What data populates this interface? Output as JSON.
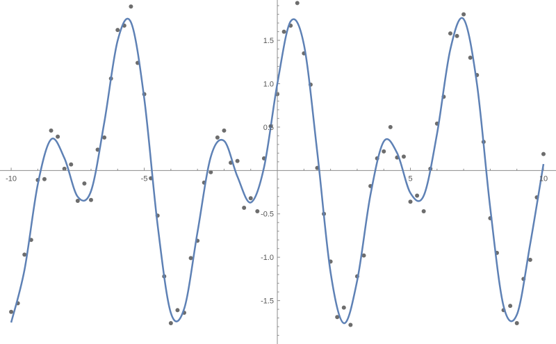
{
  "chart_data": {
    "type": "scatter",
    "title": "",
    "xlabel": "",
    "ylabel": "",
    "xlim": [
      -10.42,
      10.47
    ],
    "ylim": [
      -2.0,
      1.965
    ],
    "grid": false,
    "x_ticks": [
      {
        "value": -10,
        "label": "-10"
      },
      {
        "value": -5,
        "label": "-5"
      },
      {
        "value": 5,
        "label": "5"
      },
      {
        "value": 10,
        "label": "10"
      }
    ],
    "y_ticks": [
      {
        "value": 1.5,
        "label": "1.5"
      },
      {
        "value": 1.0,
        "label": "1.0"
      },
      {
        "value": 0.5,
        "label": "0.5"
      },
      {
        "value": -0.5,
        "label": "-0.5"
      },
      {
        "value": -1.0,
        "label": "-1.0"
      },
      {
        "value": -1.5,
        "label": "-1.5"
      }
    ],
    "colors": {
      "points": "#6d6d6d",
      "fit_curve": "#5e81b5",
      "axes": "#8c8c8c"
    },
    "series": [
      {
        "kind": "scatter",
        "points": [
          [
            -10,
            -1.63
          ],
          [
            -9.75,
            -1.53
          ],
          [
            -9.5,
            -0.97
          ],
          [
            -9.25,
            -0.8
          ],
          [
            -9,
            -0.11
          ],
          [
            -8.75,
            -0.1
          ],
          [
            -8.5,
            0.46
          ],
          [
            -8.25,
            0.39
          ],
          [
            -8,
            0.02
          ],
          [
            -7.75,
            0.07
          ],
          [
            -7.5,
            -0.35
          ],
          [
            -7.25,
            -0.15
          ],
          [
            -7,
            -0.34
          ],
          [
            -6.75,
            0.24
          ],
          [
            -6.5,
            0.38
          ],
          [
            -6.25,
            1.06
          ],
          [
            -6,
            1.62
          ],
          [
            -5.75,
            1.67
          ],
          [
            -5.5,
            1.89
          ],
          [
            -5.25,
            1.24
          ],
          [
            -5,
            0.88
          ],
          [
            -4.75,
            -0.09
          ],
          [
            -4.5,
            -0.52
          ],
          [
            -4.25,
            -1.22
          ],
          [
            -4,
            -1.76
          ],
          [
            -3.75,
            -1.61
          ],
          [
            -3.5,
            -1.64
          ],
          [
            -3.25,
            -1.01
          ],
          [
            -3,
            -0.81
          ],
          [
            -2.75,
            -0.14
          ],
          [
            -2.5,
            -0.02
          ],
          [
            -2.25,
            0.38
          ],
          [
            -2,
            0.46
          ],
          [
            -1.75,
            0.09
          ],
          [
            -1.5,
            0.11
          ],
          [
            -1.25,
            -0.43
          ],
          [
            -1,
            -0.32
          ],
          [
            -0.75,
            -0.47
          ],
          [
            -0.5,
            0.14
          ],
          [
            -0.25,
            0.51
          ],
          [
            0,
            0.88
          ],
          [
            0.25,
            1.6
          ],
          [
            0.5,
            1.67
          ],
          [
            0.75,
            1.93
          ],
          [
            1,
            1.35
          ],
          [
            1.25,
            0.99
          ],
          [
            1.5,
            0.03
          ],
          [
            1.75,
            -0.5
          ],
          [
            2,
            -1.05
          ],
          [
            2.25,
            -1.69
          ],
          [
            2.5,
            -1.58
          ],
          [
            2.75,
            -1.78
          ],
          [
            3,
            -1.22
          ],
          [
            3.25,
            -0.98
          ],
          [
            3.5,
            -0.18
          ],
          [
            3.75,
            0.14
          ],
          [
            4,
            0.22
          ],
          [
            4.25,
            0.5
          ],
          [
            4.5,
            0.15
          ],
          [
            4.75,
            0.16
          ],
          [
            5,
            -0.36
          ],
          [
            5.25,
            -0.29
          ],
          [
            5.5,
            -0.47
          ],
          [
            5.75,
            0.02
          ],
          [
            6,
            0.54
          ],
          [
            6.25,
            0.85
          ],
          [
            6.5,
            1.58
          ],
          [
            6.75,
            1.55
          ],
          [
            7,
            1.8
          ],
          [
            7.25,
            1.3
          ],
          [
            7.5,
            1.1
          ],
          [
            7.75,
            0.33
          ],
          [
            8,
            -0.55
          ],
          [
            8.25,
            -0.95
          ],
          [
            8.5,
            -1.61
          ],
          [
            8.75,
            -1.56
          ],
          [
            9,
            -1.76
          ],
          [
            9.25,
            -1.25
          ],
          [
            9.5,
            -1.03
          ],
          [
            9.75,
            -0.31
          ],
          [
            10,
            0.19
          ]
        ]
      },
      {
        "kind": "line",
        "x": [
          -10,
          -9.5,
          -9,
          -8.5,
          -8,
          -7.5,
          -7,
          -6.5,
          -6,
          -5.5,
          -5,
          -4.5,
          -4,
          -3.5,
          -3,
          -2.5,
          -2,
          -1.5,
          -1,
          -0.5,
          0,
          0.5,
          1,
          1.5,
          2,
          2.5,
          3,
          3.5,
          4,
          4.5,
          5,
          5.5,
          6,
          6.5,
          7,
          7.5,
          8,
          8.5,
          9,
          9.5,
          10
        ],
        "y": [
          -1.752,
          -1.146,
          -0.16,
          0.359,
          0.142,
          -0.303,
          -0.237,
          0.557,
          1.497,
          1.709,
          0.828,
          -0.623,
          -1.643,
          -1.593,
          -0.711,
          0.158,
          0.341,
          -0.07,
          -0.369,
          0.036,
          1.0,
          1.719,
          1.449,
          0.212,
          -1.173,
          -1.76,
          -1.269,
          -0.279,
          0.335,
          0.201,
          -0.26,
          -0.291,
          0.423,
          1.397,
          1.745,
          0.997,
          -0.434,
          -1.563,
          -1.662,
          -0.848,
          0.074
        ]
      }
    ]
  }
}
